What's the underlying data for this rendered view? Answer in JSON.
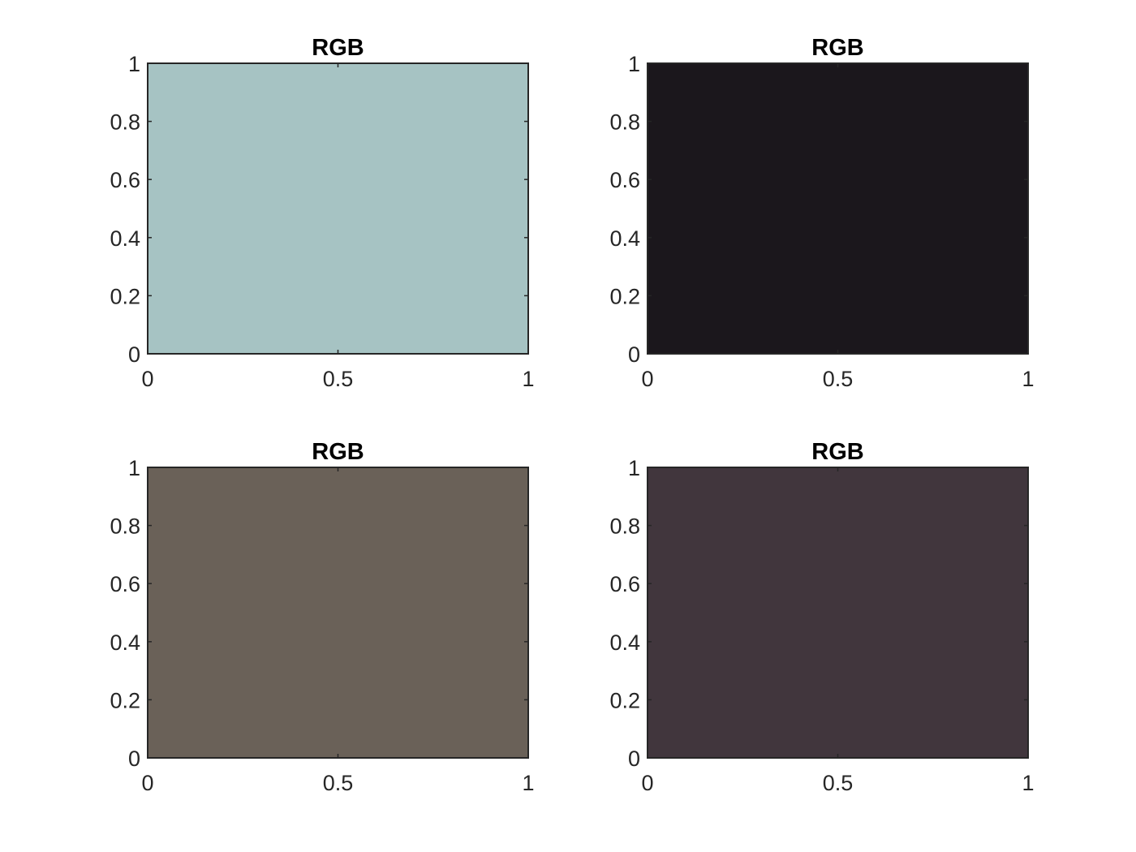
{
  "chart_data": [
    {
      "type": "heatmap",
      "title": "RGB",
      "fill_color": "#a6c3c3",
      "xlim": [
        0,
        1
      ],
      "ylim": [
        0,
        1
      ],
      "xticks": [
        "0",
        "0.5",
        "1"
      ],
      "yticks": [
        "0",
        "0.2",
        "0.4",
        "0.6",
        "0.8",
        "1"
      ],
      "grid": false
    },
    {
      "type": "heatmap",
      "title": "RGB",
      "fill_color": "#1b171c",
      "xlim": [
        0,
        1
      ],
      "ylim": [
        0,
        1
      ],
      "xticks": [
        "0",
        "0.5",
        "1"
      ],
      "yticks": [
        "0",
        "0.2",
        "0.4",
        "0.6",
        "0.8",
        "1"
      ],
      "grid": false
    },
    {
      "type": "heatmap",
      "title": "RGB",
      "fill_color": "#6a6158",
      "xlim": [
        0,
        1
      ],
      "ylim": [
        0,
        1
      ],
      "xticks": [
        "0",
        "0.5",
        "1"
      ],
      "yticks": [
        "0",
        "0.2",
        "0.4",
        "0.6",
        "0.8",
        "1"
      ],
      "grid": false
    },
    {
      "type": "heatmap",
      "title": "RGB",
      "fill_color": "#41363d",
      "xlim": [
        0,
        1
      ],
      "ylim": [
        0,
        1
      ],
      "xticks": [
        "0",
        "0.5",
        "1"
      ],
      "yticks": [
        "0",
        "0.2",
        "0.4",
        "0.6",
        "0.8",
        "1"
      ],
      "grid": false
    }
  ]
}
